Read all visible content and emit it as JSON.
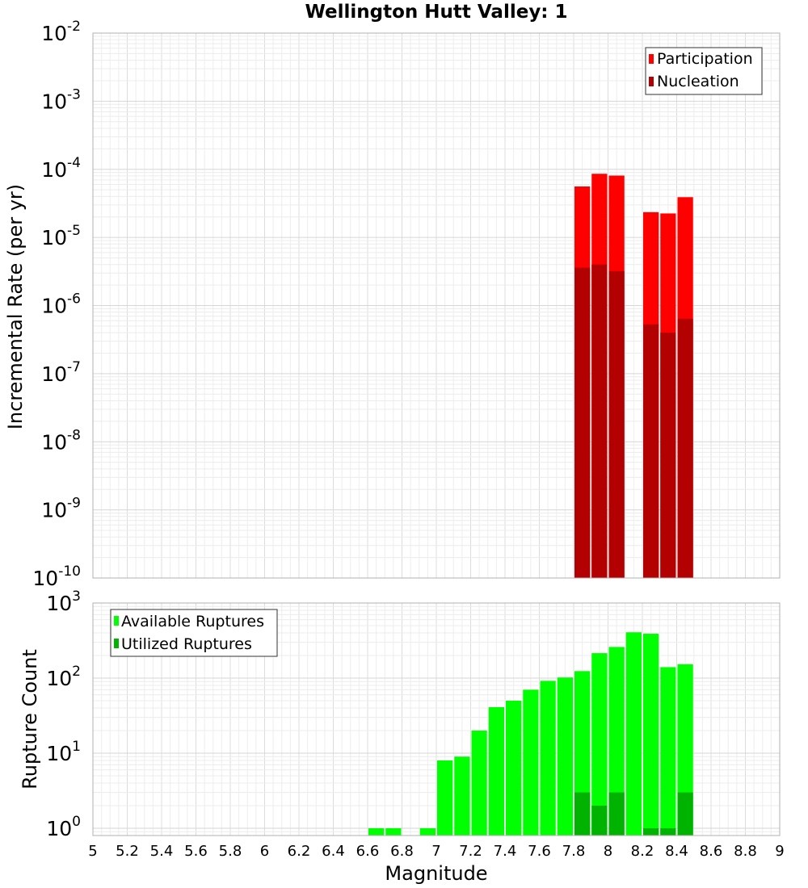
{
  "chart_data": [
    {
      "type": "bar",
      "title": "Wellington Hutt Valley: 1",
      "xlabel": "",
      "ylabel": "Incremental Rate (per yr)",
      "y_scale": "log",
      "xlim": [
        5,
        9
      ],
      "ylim": [
        1e-10,
        0.01
      ],
      "y_ticks": [
        {
          "base": "10",
          "exp": "-10"
        },
        {
          "base": "10",
          "exp": "-9"
        },
        {
          "base": "10",
          "exp": "-8"
        },
        {
          "base": "10",
          "exp": "-7"
        },
        {
          "base": "10",
          "exp": "-6"
        },
        {
          "base": "10",
          "exp": "-5"
        },
        {
          "base": "10",
          "exp": "-4"
        },
        {
          "base": "10",
          "exp": "-3"
        },
        {
          "base": "10",
          "exp": "-2"
        }
      ],
      "grid": true,
      "legend_position": "top-right",
      "bar_width": 0.1,
      "series": [
        {
          "name": "Participation",
          "color": "#ff0000",
          "x": [
            7.85,
            7.95,
            8.05,
            8.25,
            8.35,
            8.45
          ],
          "values": [
            5.6e-05,
            8.6e-05,
            8.1e-05,
            2.35e-05,
            2.25e-05,
            3.9e-05
          ]
        },
        {
          "name": "Nucleation",
          "color": "#b30000",
          "x": [
            7.85,
            7.95,
            8.05,
            8.25,
            8.35,
            8.45
          ],
          "values": [
            3.6e-06,
            4e-06,
            3.2e-06,
            5.3e-07,
            4e-07,
            6.4e-07
          ]
        }
      ]
    },
    {
      "type": "bar",
      "title": "",
      "xlabel": "Magnitude",
      "ylabel": "Rupture Count",
      "y_scale": "log",
      "xlim": [
        5,
        9
      ],
      "ylim": [
        0.8,
        1000
      ],
      "x_ticks": [
        "5",
        "5.2",
        "5.4",
        "5.6",
        "5.8",
        "6",
        "6.2",
        "6.4",
        "6.6",
        "6.8",
        "7",
        "7.2",
        "7.4",
        "7.6",
        "7.8",
        "8",
        "8.2",
        "8.4",
        "8.6",
        "8.8",
        "9"
      ],
      "y_ticks": [
        {
          "base": "10",
          "exp": "0"
        },
        {
          "base": "10",
          "exp": "1"
        },
        {
          "base": "10",
          "exp": "2"
        },
        {
          "base": "10",
          "exp": "3"
        }
      ],
      "grid": true,
      "legend_position": "top-left",
      "bar_width": 0.1,
      "series": [
        {
          "name": "Available Ruptures",
          "color": "#00ff00",
          "x": [
            6.65,
            6.75,
            6.95,
            7.05,
            7.15,
            7.25,
            7.35,
            7.45,
            7.55,
            7.65,
            7.75,
            7.85,
            7.95,
            8.05,
            8.15,
            8.25,
            8.35,
            8.45
          ],
          "values": [
            1,
            1,
            1,
            8,
            9,
            20,
            41,
            50,
            70,
            92,
            102,
            124,
            215,
            260,
            408,
            390,
            140,
            153
          ]
        },
        {
          "name": "Utilized Ruptures",
          "color": "#00b300",
          "x": [
            7.85,
            7.95,
            8.25,
            8.35,
            8.45
          ],
          "values": [
            3,
            2,
            1,
            1,
            3
          ],
          "extra_x": [
            8.05
          ],
          "extra_values": [
            3
          ]
        }
      ]
    }
  ]
}
